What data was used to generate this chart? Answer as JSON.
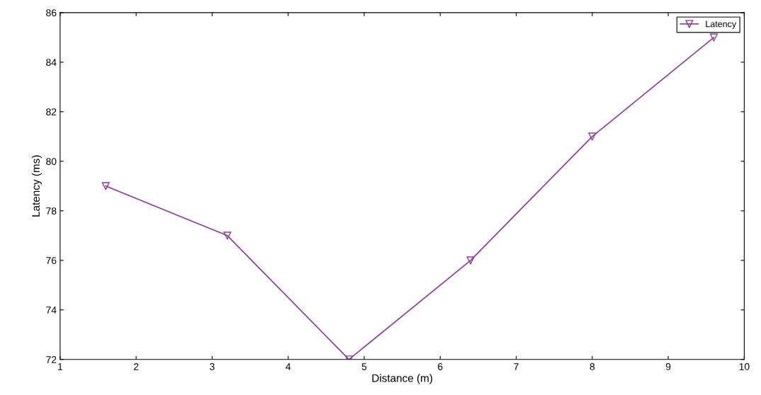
{
  "chart_data": {
    "type": "line",
    "xlabel": "Distance (m)",
    "ylabel": "Latency (ms)",
    "x": [
      1.6,
      3.2,
      4.8,
      6.4,
      8,
      9.6
    ],
    "series": [
      {
        "name": "Latency",
        "color": "#8e3a9c",
        "values": [
          79,
          77,
          72,
          76,
          81,
          85
        ]
      }
    ],
    "xlim": [
      1,
      10
    ],
    "xticks": [
      1,
      2,
      3,
      4,
      5,
      6,
      7,
      8,
      9,
      10
    ],
    "ylim": [
      72,
      86
    ],
    "yticks": [
      72,
      74,
      76,
      78,
      80,
      82,
      84,
      86
    ],
    "grid": false,
    "legend": "top right",
    "marker": "triangle",
    "line_style": "solid"
  }
}
